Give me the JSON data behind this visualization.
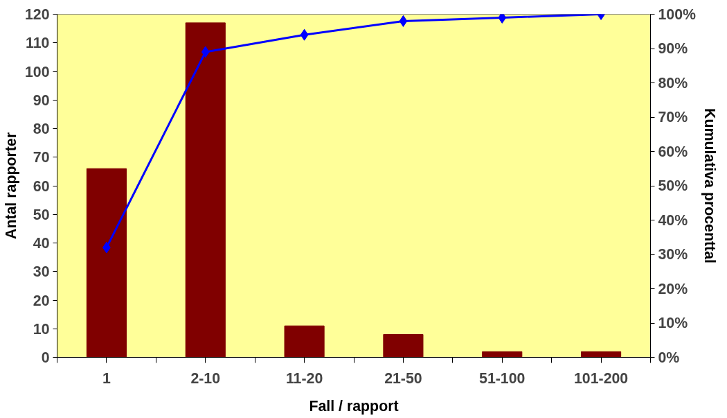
{
  "chart_data": {
    "type": "bar",
    "xlabel": "Fall / rapport",
    "ylabel": "Antal rapporter",
    "y2label": "Kumulativa procenttal",
    "categories": [
      "1",
      "2-10",
      "11-20",
      "21-50",
      "51-100",
      "101-200"
    ],
    "series": [
      {
        "color": "#800000",
        "values": [
          66,
          117,
          11,
          8,
          2,
          2
        ]
      },
      {
        "type": "line",
        "color": "#0000ff",
        "axis": "y2",
        "marker": "diamond",
        "values": [
          32,
          89,
          94,
          98,
          99,
          100
        ]
      }
    ],
    "ylim": [
      0,
      120
    ],
    "yticks": [
      0,
      10,
      20,
      30,
      40,
      50,
      60,
      70,
      80,
      90,
      100,
      110,
      120
    ],
    "y2lim": [
      0,
      100
    ],
    "y2ticks": [
      {
        "value": 0,
        "label": "0%"
      },
      {
        "value": 10,
        "label": "10%"
      },
      {
        "value": 20,
        "label": "20%"
      },
      {
        "value": 30,
        "label": "30%"
      },
      {
        "value": 40,
        "label": "40%"
      },
      {
        "value": 50,
        "label": "50%"
      },
      {
        "value": 60,
        "label": "60%"
      },
      {
        "value": 70,
        "label": "70%"
      },
      {
        "value": 80,
        "label": "80%"
      },
      {
        "value": 90,
        "label": "90%"
      },
      {
        "value": 100,
        "label": "100%"
      }
    ],
    "grid": false
  }
}
